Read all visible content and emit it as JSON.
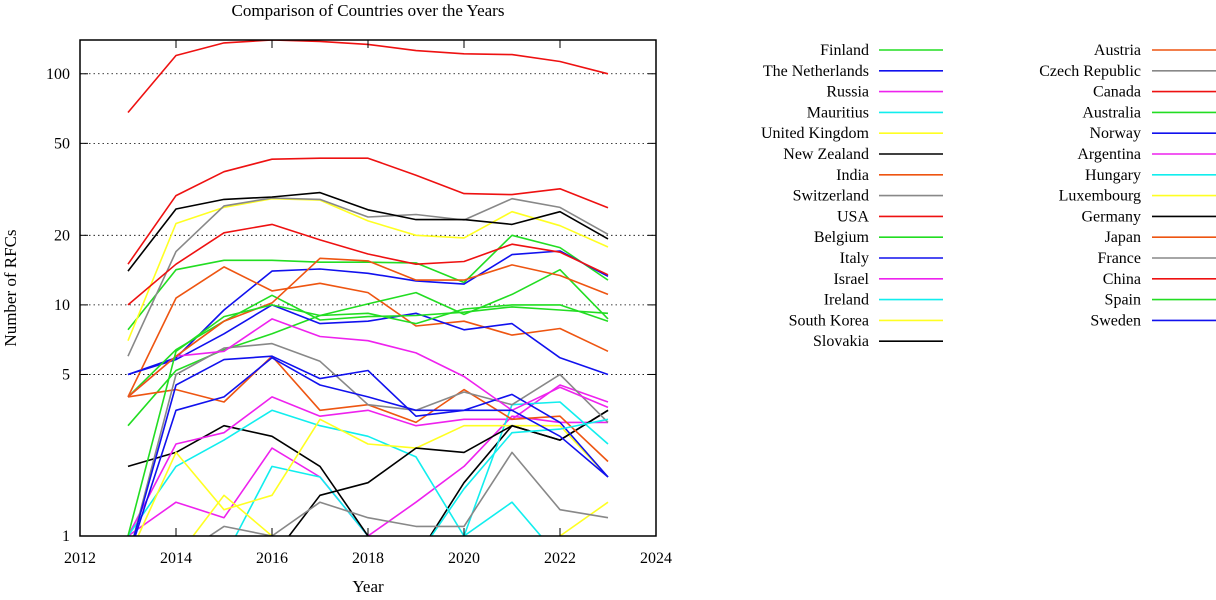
{
  "chart_data": {
    "type": "line",
    "title": "Comparison of Countries over the Years",
    "xlabel": "Year",
    "ylabel": "Number of RFCs",
    "xlim": [
      2012,
      2024
    ],
    "ylim": [
      1,
      140
    ],
    "yscale": "log",
    "x_ticks": [
      2012,
      2014,
      2016,
      2018,
      2020,
      2022,
      2024
    ],
    "y_ticks": [
      1,
      5,
      10,
      20,
      50,
      100
    ],
    "y_tick_labels": [
      "1",
      "5",
      "10",
      "20",
      "50",
      "100"
    ],
    "grid": "horizontal-dotted",
    "legend_position": "right, two columns",
    "series": [
      {
        "name": "Finland",
        "color": "#22dd22",
        "x": [
          2013,
          2014,
          2015,
          2016,
          2017,
          2018,
          2019,
          2020,
          2021,
          2022,
          2023
        ],
        "y": [
          7.8,
          14.2,
          15.6,
          15.6,
          15.3,
          15.3,
          15.2,
          12.5,
          20.0,
          17.7,
          12.8
        ]
      },
      {
        "name": "The Netherlands",
        "color": "#1111ee",
        "x": [
          2013,
          2014,
          2015,
          2016,
          2017,
          2018,
          2019,
          2020,
          2021,
          2022,
          2023
        ],
        "y": [
          5.0,
          5.9,
          9.5,
          14.0,
          14.3,
          13.7,
          12.7,
          12.3,
          16.5,
          17.1,
          13.3
        ]
      },
      {
        "name": "Russia",
        "color": "#ee22ee",
        "x": [
          2013,
          2014,
          2015,
          2016,
          2017,
          2018,
          2019,
          2020,
          2021,
          2022,
          2023
        ],
        "y": [
          1.0,
          1.4,
          1.2,
          2.4,
          1.8,
          1.0,
          1.4,
          2.0,
          3.3,
          3.1,
          3.1
        ]
      },
      {
        "name": "Mauritius",
        "color": "#11eeee",
        "x": [
          2013,
          2014,
          2015,
          2016,
          2017,
          2018,
          2019,
          2020,
          2021,
          2022,
          2023
        ],
        "y": [
          1.0,
          0.8,
          0.8,
          2.0,
          1.8,
          1.0,
          0.8,
          1.0,
          1.4,
          0.8,
          0.8
        ]
      },
      {
        "name": "United Kingdom",
        "color": "#ffff22",
        "x": [
          2013,
          2014,
          2015,
          2016,
          2017,
          2018,
          2019,
          2020,
          2021,
          2022,
          2023
        ],
        "y": [
          7.0,
          22.5,
          26.4,
          28.8,
          28.4,
          23.1,
          20.0,
          19.5,
          25.3,
          22.0,
          17.8
        ]
      },
      {
        "name": "New Zealand",
        "color": "#000000",
        "x": [
          2013,
          2014,
          2015,
          2016,
          2017,
          2018,
          2019,
          2020,
          2021,
          2022,
          2023
        ],
        "y": [
          2.0,
          2.3,
          3.0,
          2.7,
          2.0,
          1.0,
          0.8,
          1.7,
          3.0,
          2.6,
          3.5
        ]
      },
      {
        "name": "India",
        "color": "#ee5511",
        "x": [
          2013,
          2014,
          2015,
          2016,
          2017,
          2018,
          2019,
          2020,
          2021,
          2022,
          2023
        ],
        "y": [
          4.0,
          10.7,
          14.6,
          11.5,
          12.4,
          11.3,
          8.1,
          8.5,
          7.4,
          7.9,
          6.3
        ]
      },
      {
        "name": "Switzerland",
        "color": "#888888",
        "x": [
          2013,
          2014,
          2015,
          2016,
          2017,
          2018,
          2019,
          2020,
          2021,
          2022,
          2023
        ],
        "y": [
          6.0,
          17.0,
          26.8,
          29.0,
          28.6,
          24.0,
          24.6,
          23.3,
          28.8,
          26.4,
          20.2
        ]
      },
      {
        "name": "USA",
        "color": "#ee1111",
        "x": [
          2013,
          2014,
          2015,
          2016,
          2017,
          2018,
          2019,
          2020,
          2021,
          2022,
          2023
        ],
        "y": [
          15.0,
          29.7,
          37.7,
          42.7,
          43.1,
          43.1,
          36.4,
          30.3,
          30.0,
          31.8,
          26.3
        ]
      },
      {
        "name": "Belgium",
        "color": "#22dd22",
        "x": [
          2013,
          2014,
          2015,
          2016,
          2017,
          2018,
          2019,
          2020,
          2021,
          2022,
          2023
        ],
        "y": [
          3.0,
          5.2,
          6.4,
          7.5,
          9.0,
          10.1,
          11.3,
          9.1,
          11.1,
          14.2,
          8.7
        ]
      },
      {
        "name": "Italy",
        "color": "#1111ee",
        "x": [
          2013,
          2014,
          2015,
          2016,
          2017,
          2018,
          2019,
          2020,
          2021,
          2022,
          2023
        ],
        "y": [
          5.0,
          5.8,
          7.5,
          10.0,
          8.3,
          8.5,
          9.2,
          7.8,
          8.3,
          5.9,
          5.0
        ]
      },
      {
        "name": "Israel",
        "color": "#ee22ee",
        "x": [
          2013,
          2014,
          2015,
          2016,
          2017,
          2018,
          2019,
          2020,
          2021,
          2022,
          2023
        ],
        "y": [
          1.0,
          2.5,
          2.8,
          4.0,
          3.3,
          3.5,
          3.0,
          3.2,
          3.2,
          4.5,
          3.8
        ]
      },
      {
        "name": "Ireland",
        "color": "#11eeee",
        "x": [
          2013,
          2014,
          2015,
          2016,
          2017,
          2018,
          2019,
          2020,
          2021,
          2022,
          2023
        ],
        "y": [
          1.0,
          2.0,
          2.6,
          3.5,
          3.0,
          2.7,
          2.2,
          1.0,
          3.7,
          3.8,
          2.5
        ]
      },
      {
        "name": "South Korea",
        "color": "#ffff22",
        "x": [
          2013,
          2014,
          2015,
          2016,
          2017,
          2018,
          2019,
          2020,
          2021,
          2022,
          2023
        ],
        "y": [
          0.8,
          2.3,
          1.3,
          1.5,
          3.2,
          2.5,
          2.4,
          3.0,
          3.0,
          3.0,
          1.8
        ]
      },
      {
        "name": "Slovakia",
        "color": "#000000",
        "x": [
          2013,
          2014,
          2015,
          2016,
          2017,
          2018,
          2019,
          2020,
          2021,
          2022,
          2023
        ],
        "y": [
          0.8,
          0.8,
          0.8,
          0.8,
          1.5,
          1.7,
          2.4,
          2.3,
          3.0,
          2.6,
          3.5
        ]
      },
      {
        "name": "Austria",
        "color": "#ee5511",
        "x": [
          2013,
          2014,
          2015,
          2016,
          2017,
          2018,
          2019,
          2020,
          2021,
          2022,
          2023
        ],
        "y": [
          4.0,
          4.3,
          3.8,
          6.0,
          3.5,
          3.7,
          3.1,
          4.3,
          3.2,
          3.3,
          2.1
        ]
      },
      {
        "name": "Czech Republic",
        "color": "#888888",
        "x": [
          2013,
          2014,
          2015,
          2016,
          2017,
          2018,
          2019,
          2020,
          2021,
          2022,
          2023
        ],
        "y": [
          0.8,
          5.0,
          6.5,
          6.8,
          5.7,
          3.7,
          3.5,
          4.2,
          3.7,
          5.0,
          3.1
        ]
      },
      {
        "name": "Canada",
        "color": "#ee1111",
        "x": [
          2013,
          2014,
          2015,
          2016,
          2017,
          2018,
          2019,
          2020,
          2021,
          2022,
          2023
        ],
        "y": [
          68.0,
          120.0,
          136.0,
          140.0,
          138.0,
          134.0,
          126.0,
          122.0,
          121.0,
          113.0,
          100.0
        ]
      },
      {
        "name": "Australia",
        "color": "#22dd22",
        "x": [
          2013,
          2014,
          2015,
          2016,
          2017,
          2018,
          2019,
          2020,
          2021,
          2022,
          2023
        ],
        "y": [
          4.0,
          6.4,
          8.5,
          11.0,
          8.6,
          8.9,
          9.0,
          9.3,
          9.8,
          9.5,
          9.2
        ]
      },
      {
        "name": "Norway",
        "color": "#1111ee",
        "x": [
          2013,
          2014,
          2015,
          2016,
          2017,
          2018,
          2019,
          2020,
          2021,
          2022,
          2023
        ],
        "y": [
          0.8,
          4.5,
          5.8,
          6.0,
          4.8,
          5.2,
          3.3,
          3.5,
          4.1,
          3.1,
          1.8
        ]
      },
      {
        "name": "Argentina",
        "color": "#ee22ee",
        "x": [
          2013,
          2014,
          2015,
          2016,
          2017,
          2018,
          2019,
          2020,
          2021,
          2022,
          2023
        ],
        "y": [
          4.0,
          6.0,
          6.3,
          8.7,
          7.3,
          7.0,
          6.2,
          4.9,
          3.5,
          4.4,
          3.6
        ]
      },
      {
        "name": "Hungary",
        "color": "#11eeee",
        "x": [
          2013,
          2014,
          2015,
          2016,
          2017,
          2018,
          2019,
          2020,
          2021,
          2022,
          2023
        ],
        "y": [
          0.8,
          0.8,
          0.8,
          0.8,
          0.8,
          0.8,
          0.8,
          1.6,
          2.8,
          2.9,
          3.2
        ]
      },
      {
        "name": "Luxembourg",
        "color": "#ffff22",
        "x": [
          2013,
          2014,
          2015,
          2016,
          2017,
          2018,
          2019,
          2020,
          2021,
          2022,
          2023
        ],
        "y": [
          1.0,
          0.8,
          1.5,
          1.0,
          0.8,
          0.8,
          0.8,
          0.8,
          0.8,
          1.0,
          1.4
        ]
      },
      {
        "name": "Germany",
        "color": "#000000",
        "x": [
          2013,
          2014,
          2015,
          2016,
          2017,
          2018,
          2019,
          2020,
          2021,
          2022,
          2023
        ],
        "y": [
          14.0,
          26.0,
          28.6,
          29.3,
          30.6,
          25.8,
          23.4,
          23.4,
          22.3,
          25.3,
          19.3
        ]
      },
      {
        "name": "Japan",
        "color": "#ee5511",
        "x": [
          2013,
          2014,
          2015,
          2016,
          2017,
          2018,
          2019,
          2020,
          2021,
          2022,
          2023
        ],
        "y": [
          4.0,
          6.0,
          8.5,
          10.2,
          15.9,
          15.5,
          12.8,
          12.8,
          14.9,
          13.4,
          11.1
        ]
      },
      {
        "name": "France",
        "color": "#888888",
        "x": [
          2013,
          2014,
          2015,
          2016,
          2017,
          2018,
          2019,
          2020,
          2021,
          2022,
          2023
        ],
        "y": [
          0.8,
          0.8,
          1.1,
          1.0,
          1.4,
          1.2,
          1.1,
          1.1,
          2.3,
          1.3,
          1.2
        ]
      },
      {
        "name": "China",
        "color": "#ee1111",
        "x": [
          2013,
          2014,
          2015,
          2016,
          2017,
          2018,
          2019,
          2020,
          2021,
          2022,
          2023
        ],
        "y": [
          10.0,
          15.0,
          20.5,
          22.3,
          19.1,
          16.6,
          15.0,
          15.4,
          18.3,
          16.9,
          13.5
        ]
      },
      {
        "name": "Spain",
        "color": "#22dd22",
        "x": [
          2013,
          2014,
          2015,
          2016,
          2017,
          2018,
          2019,
          2020,
          2021,
          2022,
          2023
        ],
        "y": [
          1.0,
          6.3,
          8.9,
          10.0,
          9.0,
          9.2,
          8.3,
          9.6,
          10.0,
          10.0,
          8.5
        ]
      },
      {
        "name": "Sweden",
        "color": "#1111ee",
        "x": [
          2013,
          2014,
          2015,
          2016,
          2017,
          2018,
          2019,
          2020,
          2021,
          2022,
          2023
        ],
        "y": [
          0.8,
          3.5,
          4.0,
          5.9,
          4.5,
          4.0,
          3.5,
          3.5,
          3.5,
          2.7,
          1.8
        ]
      }
    ]
  }
}
